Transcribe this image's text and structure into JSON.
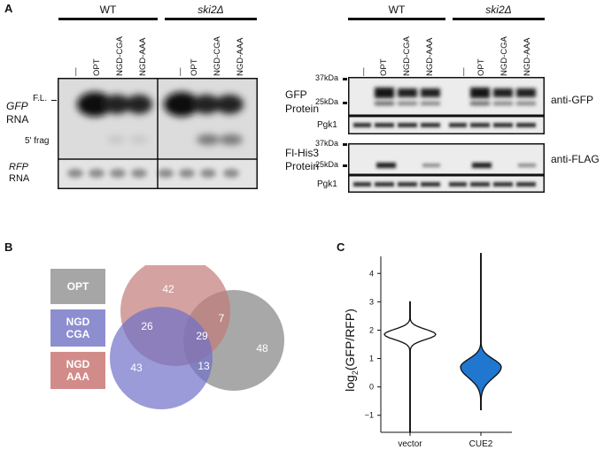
{
  "panels": {
    "a": "A",
    "b": "B",
    "c": "C"
  },
  "panel_a": {
    "groups": [
      "WT",
      "ski2Δ"
    ],
    "lanes": [
      "—",
      "OPT",
      "NGD-CGA",
      "NGD-AAA"
    ],
    "northern": {
      "fl_label": "F.L.",
      "gfp_label": "GFP",
      "rna_label": "RNA",
      "frag_label": "5' frag",
      "rfp_label": "RFP",
      "rfp_rna_label": "RNA"
    },
    "western": {
      "marker_37": "37kDa",
      "marker_25": "25kDa",
      "gfp_protein_1": "GFP",
      "gfp_protein_2": "Protein",
      "flag_protein_1": "Fl-His3",
      "flag_protein_2": "Protein",
      "pgk1": "Pgk1",
      "anti_gfp": "anti-GFP",
      "anti_flag": "anti-FLAG"
    }
  },
  "panel_b": {
    "legend": [
      {
        "line1": "OPT",
        "line2": "",
        "color": "#a6a6a6"
      },
      {
        "line1": "NGD",
        "line2": "CGA",
        "color": "#8d8ed0"
      },
      {
        "line1": "NGD",
        "line2": "AAA",
        "color": "#d18c8a"
      }
    ],
    "venn": {
      "ngd_aaa_only": "42",
      "cga_aaa": "26",
      "aaa_opt": "7",
      "all_three": "29",
      "ngd_cga_only": "43",
      "cga_opt": "13",
      "opt_only": "48"
    }
  },
  "chart_data": {
    "type": "violin",
    "categories": [
      "vector",
      "CUE2"
    ],
    "ylabel_main": "log",
    "ylabel_sub": "2",
    "ylabel_rest": "(GFP/RFP)",
    "ylim": [
      -1.6,
      4.6
    ],
    "yticks": [
      "−1",
      "0",
      "1",
      "2",
      "3",
      "4"
    ],
    "series": [
      {
        "category": "vector",
        "min": -1.6,
        "max": 3.0,
        "mode": 1.85,
        "fill": "#ffffff"
      },
      {
        "category": "CUE2",
        "min": -0.8,
        "max": 4.7,
        "mode": 0.7,
        "fill": "#1f77d0"
      }
    ]
  }
}
